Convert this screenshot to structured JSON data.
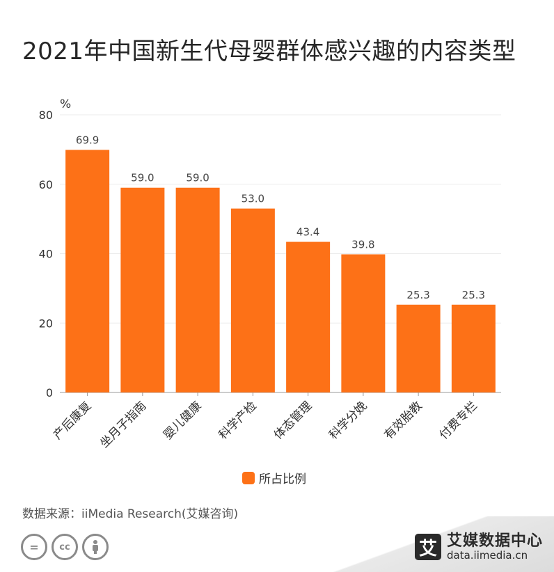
{
  "title": "2021年中国新生代母婴群体感兴趣的内容类型",
  "chart_data": {
    "type": "bar",
    "categories": [
      "产后康复",
      "坐月子指南",
      "婴儿健康",
      "科学产检",
      "体态管理",
      "科学分娩",
      "有效胎教",
      "付费专栏"
    ],
    "series": [
      {
        "name": "所占比例",
        "values": [
          69.9,
          59.0,
          59.0,
          53.0,
          43.4,
          39.8,
          25.3,
          25.3
        ]
      }
    ],
    "data_labels": [
      "69.9",
      "59.0",
      "59.0",
      "53.0",
      "43.4",
      "39.8",
      "25.3",
      "25.3"
    ],
    "yunit": "%",
    "ylim": [
      0,
      80
    ],
    "yticks": [
      0,
      20,
      40,
      60,
      80
    ],
    "grid": true,
    "legend_position": "bottom-center",
    "bar_color": "#fd7117"
  },
  "legend": {
    "label": "所占比例"
  },
  "source": "数据来源：iiMedia Research(艾媒咨询)",
  "brand": {
    "logo_char": "艾",
    "name": "艾媒数据中心",
    "url": "data.iimedia.cn"
  }
}
